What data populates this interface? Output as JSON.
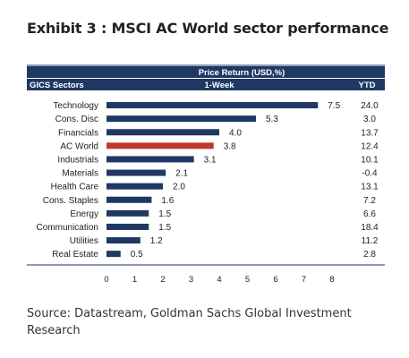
{
  "title": "Exhibit 3 : MSCI AC World sector performance",
  "source": "Source: Datastream, Goldman Sachs Global Investment Research",
  "chart_data": {
    "type": "bar",
    "orientation": "horizontal",
    "header_group": "Price Return (USD,%)",
    "header_categories": "GICS Sectors",
    "header_series": "1-Week",
    "header_ytd": "YTD",
    "categories": [
      "Technology",
      "Cons. Disc",
      "Financials",
      "AC World",
      "Industrials",
      "Materials",
      "Health Care",
      "Cons. Staples",
      "Energy",
      "Communication",
      "Utilities",
      "Real Estate"
    ],
    "values": [
      7.5,
      5.3,
      4.0,
      3.8,
      3.1,
      2.1,
      2.0,
      1.6,
      1.5,
      1.5,
      1.2,
      0.5
    ],
    "value_labels": [
      "7.5",
      "5.3",
      "4.0",
      "3.8",
      "3.1",
      "2.1",
      "2.0",
      "1.6",
      "1.5",
      "1.5",
      "1.2",
      "0.5"
    ],
    "ytd": [
      "24.0",
      "3.0",
      "13.7",
      "12.4",
      "10.1",
      "-0.4",
      "13.1",
      "7.2",
      "6.6",
      "18.4",
      "11.2",
      "2.8"
    ],
    "highlight_index": 3,
    "colors": {
      "bar": "#1f3864",
      "highlight": "#c0392b",
      "header_bg": "#1f3864",
      "header_text": "#ffffff"
    },
    "xlim": [
      0,
      8
    ],
    "xticks": [
      "0",
      "1",
      "2",
      "3",
      "4",
      "5",
      "6",
      "7",
      "8"
    ],
    "grid": false
  }
}
